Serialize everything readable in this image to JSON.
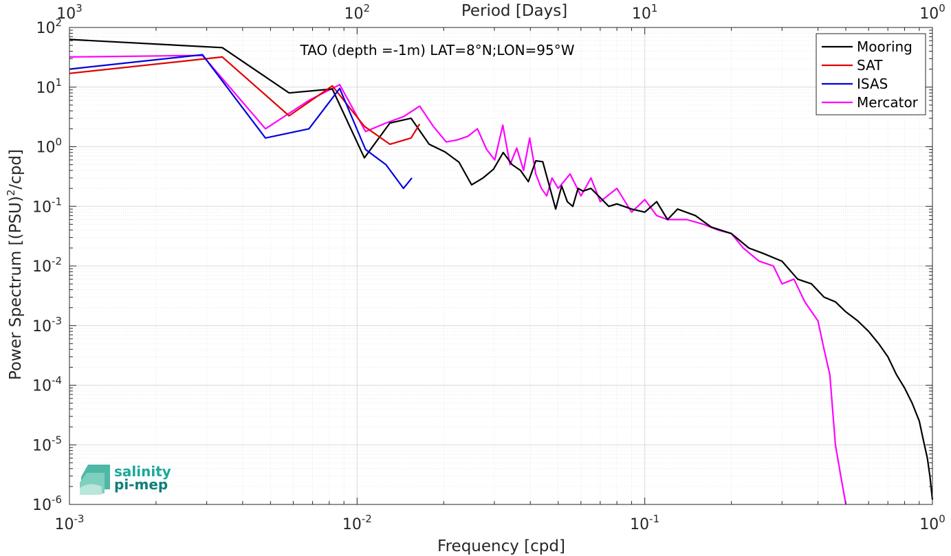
{
  "chart_data": {
    "type": "line",
    "title": "TAO (depth =-1m) LAT=8°N;LON=95°W",
    "xlabel": "Frequency [cpd]",
    "ylabel": "Power Spectrum [(PSU)²/cpd]",
    "top_xlabel": "Period [Days]",
    "xscale": "log",
    "yscale": "log",
    "xlim": [
      0.001,
      1
    ],
    "ylim": [
      1e-06,
      100
    ],
    "grid": true,
    "legend_position": "top-right",
    "x_ticks": [
      {
        "v": 0.001,
        "base": "10",
        "exp": "-3"
      },
      {
        "v": 0.01,
        "base": "10",
        "exp": "-2"
      },
      {
        "v": 0.1,
        "base": "10",
        "exp": "-1"
      },
      {
        "v": 1,
        "base": "10",
        "exp": "0"
      }
    ],
    "top_ticks": [
      {
        "v": 0.001,
        "base": "10",
        "exp": "3"
      },
      {
        "v": 0.01,
        "base": "10",
        "exp": "2"
      },
      {
        "v": 0.1,
        "base": "10",
        "exp": "1"
      },
      {
        "v": 1,
        "base": "10",
        "exp": "0"
      }
    ],
    "y_ticks": [
      {
        "v": 100,
        "base": "10",
        "exp": "2"
      },
      {
        "v": 10,
        "base": "10",
        "exp": "1"
      },
      {
        "v": 1,
        "base": "10",
        "exp": "0"
      },
      {
        "v": 0.1,
        "base": "10",
        "exp": "-1"
      },
      {
        "v": 0.01,
        "base": "10",
        "exp": "-2"
      },
      {
        "v": 0.001,
        "base": "10",
        "exp": "-3"
      },
      {
        "v": 0.0001,
        "base": "10",
        "exp": "-4"
      },
      {
        "v": 1e-05,
        "base": "10",
        "exp": "-5"
      },
      {
        "v": 1e-06,
        "base": "10",
        "exp": "-6"
      }
    ],
    "series": [
      {
        "name": "Mooring",
        "color": "#000000",
        "x": [
          0.001,
          0.0034,
          0.0058,
          0.0082,
          0.0106,
          0.013,
          0.0154,
          0.0178,
          0.0202,
          0.0226,
          0.025,
          0.0274,
          0.0298,
          0.0322,
          0.0346,
          0.037,
          0.0394,
          0.0418,
          0.0442,
          0.0466,
          0.049,
          0.0514,
          0.0538,
          0.0562,
          0.0586,
          0.061,
          0.065,
          0.07,
          0.075,
          0.08,
          0.09,
          0.1,
          0.11,
          0.12,
          0.13,
          0.15,
          0.17,
          0.2,
          0.23,
          0.26,
          0.3,
          0.34,
          0.38,
          0.42,
          0.46,
          0.5,
          0.55,
          0.6,
          0.65,
          0.7,
          0.75,
          0.8,
          0.85,
          0.9,
          0.93,
          0.96,
          0.98,
          1.0
        ],
        "y": [
          63,
          46,
          8,
          9.3,
          0.65,
          2.5,
          3,
          1.1,
          0.82,
          0.55,
          0.23,
          0.3,
          0.42,
          0.8,
          0.5,
          0.4,
          0.26,
          0.58,
          0.56,
          0.22,
          0.09,
          0.22,
          0.12,
          0.1,
          0.2,
          0.18,
          0.2,
          0.14,
          0.1,
          0.11,
          0.09,
          0.08,
          0.12,
          0.06,
          0.09,
          0.07,
          0.045,
          0.035,
          0.02,
          0.016,
          0.012,
          0.006,
          0.005,
          0.003,
          0.0025,
          0.0017,
          0.0012,
          0.0008,
          0.0005,
          0.0003,
          0.00015,
          9e-05,
          5e-05,
          2.5e-05,
          1.2e-05,
          6e-06,
          3e-06,
          1.2e-06
        ]
      },
      {
        "name": "SAT",
        "color": "#e00000",
        "x": [
          0.001,
          0.0034,
          0.0058,
          0.0082,
          0.0106,
          0.013,
          0.0154,
          0.0165
        ],
        "y": [
          17,
          32,
          3.3,
          10.5,
          2.2,
          1.1,
          1.4,
          2.4
        ]
      },
      {
        "name": "ISAS",
        "color": "#0000e0",
        "x": [
          0.001,
          0.0029,
          0.0048,
          0.0068,
          0.0087,
          0.0107,
          0.0126,
          0.0145,
          0.0155
        ],
        "y": [
          20,
          35,
          1.4,
          2.0,
          9.5,
          0.9,
          0.5,
          0.2,
          0.3
        ]
      },
      {
        "name": "Mercator",
        "color": "#ff00ff",
        "x": [
          0.001,
          0.0029,
          0.0048,
          0.0068,
          0.0087,
          0.0107,
          0.0126,
          0.0145,
          0.0165,
          0.0184,
          0.0204,
          0.0223,
          0.0243,
          0.0262,
          0.0282,
          0.0301,
          0.0321,
          0.034,
          0.0359,
          0.0379,
          0.0398,
          0.0418,
          0.0437,
          0.0456,
          0.0476,
          0.05,
          0.055,
          0.06,
          0.065,
          0.07,
          0.08,
          0.09,
          0.1,
          0.11,
          0.12,
          0.14,
          0.16,
          0.18,
          0.2,
          0.22,
          0.25,
          0.28,
          0.3,
          0.33,
          0.36,
          0.4,
          0.42,
          0.44,
          0.46,
          0.48,
          0.5
        ],
        "y": [
          32,
          34,
          2.0,
          6.0,
          11,
          1.8,
          2.5,
          3.2,
          4.8,
          2.2,
          1.2,
          1.3,
          1.5,
          2.0,
          0.9,
          0.6,
          2.3,
          0.5,
          0.95,
          0.4,
          1.4,
          0.35,
          0.2,
          0.15,
          0.3,
          0.2,
          0.35,
          0.15,
          0.3,
          0.12,
          0.2,
          0.08,
          0.13,
          0.07,
          0.06,
          0.06,
          0.05,
          0.04,
          0.035,
          0.02,
          0.012,
          0.01,
          0.005,
          0.006,
          0.0025,
          0.0012,
          0.0004,
          0.00015,
          1e-05,
          3e-06,
          1e-06
        ]
      }
    ]
  },
  "logo": {
    "line1": "salinity",
    "line2": "pi-mep"
  }
}
